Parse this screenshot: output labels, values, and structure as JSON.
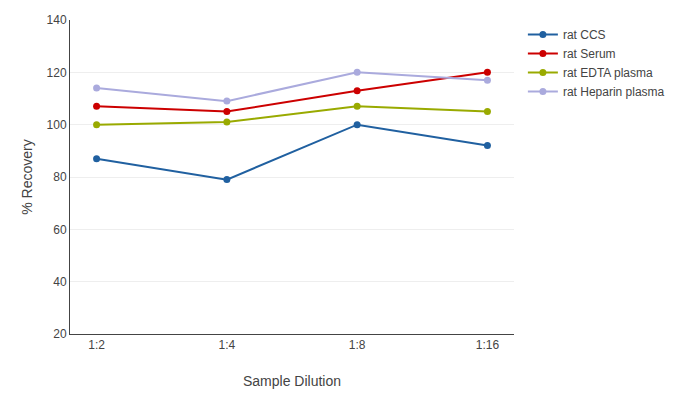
{
  "chart_data": {
    "type": "line",
    "xlabel": "Sample Dilution",
    "ylabel": "% Recovery",
    "categories": [
      "1:2",
      "1:4",
      "1:8",
      "1:16"
    ],
    "series": [
      {
        "name": "rat CCS",
        "color": "#2060a0",
        "values": [
          87,
          79,
          100,
          92
        ],
        "marker": "circle"
      },
      {
        "name": "rat Serum",
        "color": "#cc0000",
        "values": [
          107,
          105,
          113,
          120
        ],
        "marker": "circle"
      },
      {
        "name": "rat EDTA plasma",
        "color": "#99aa00",
        "values": [
          100,
          101,
          107,
          105
        ],
        "marker": "circle"
      },
      {
        "name": "rat Heparin plasma",
        "color": "#aaaadd",
        "values": [
          114,
          109,
          120,
          117
        ],
        "marker": "circle"
      }
    ],
    "ylim": [
      20,
      140
    ],
    "yticks": [
      20,
      40,
      60,
      80,
      100,
      120,
      140
    ],
    "grid": true,
    "legend": "right"
  }
}
